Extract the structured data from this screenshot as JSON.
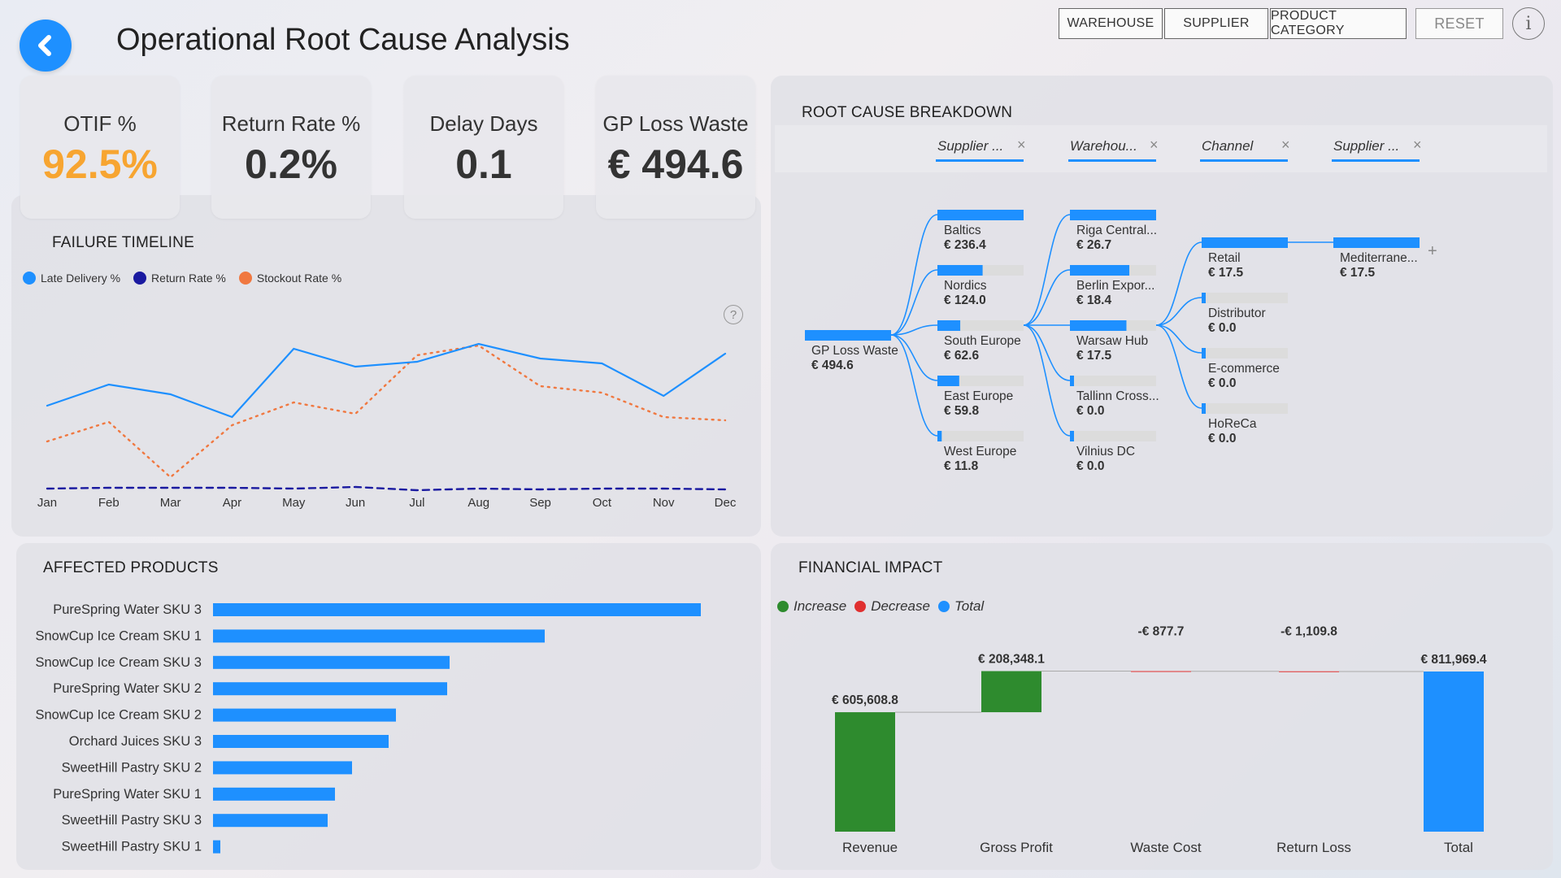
{
  "header": {
    "title": "Operational Root Cause Analysis",
    "filters": [
      "WAREHOUSE",
      "SUPPLIER",
      "PRODUCT CATEGORY"
    ],
    "reset_label": "RESET",
    "info_label": "i"
  },
  "kpis": [
    {
      "label": "OTIF %",
      "value": "92.5%",
      "color": "#f7a531"
    },
    {
      "label": "Return Rate %",
      "value": "0.2%",
      "color": "#333333"
    },
    {
      "label": "Delay Days",
      "value": "0.1",
      "color": "#333333"
    },
    {
      "label": "GP Loss Waste",
      "value": "€ 494.6",
      "color": "#333333"
    }
  ],
  "timeline": {
    "title": "FAILURE TIMELINE",
    "help_label": "?",
    "legend": [
      {
        "name": "Late Delivery %",
        "color": "#1e90ff"
      },
      {
        "name": "Return Rate %",
        "color": "#1a1aa0"
      },
      {
        "name": "Stockout Rate %",
        "color": "#f07840"
      }
    ]
  },
  "root_cause": {
    "title": "ROOT CAUSE BREAKDOWN",
    "headers": [
      "Supplier ...",
      "Warehou...",
      "Channel",
      "Supplier ..."
    ],
    "close_label": "×",
    "expand_label": "+",
    "root": {
      "label": "GP Loss Waste",
      "value": "€ 494.6"
    },
    "levels": [
      [
        {
          "label": "Baltics",
          "value": "€ 236.4",
          "amount": 236.4
        },
        {
          "label": "Nordics",
          "value": "€ 124.0",
          "amount": 124.0
        },
        {
          "label": "South Europe",
          "value": "€ 62.6",
          "amount": 62.6
        },
        {
          "label": "East Europe",
          "value": "€ 59.8",
          "amount": 59.8
        },
        {
          "label": "West Europe",
          "value": "€ 11.8",
          "amount": 11.8
        }
      ],
      [
        {
          "label": "Riga Central...",
          "value": "€ 26.7",
          "amount": 26.7
        },
        {
          "label": "Berlin Expor...",
          "value": "€ 18.4",
          "amount": 18.4
        },
        {
          "label": "Warsaw Hub",
          "value": "€ 17.5",
          "amount": 17.5
        },
        {
          "label": "Tallinn Cross...",
          "value": "€ 0.0",
          "amount": 0
        },
        {
          "label": "Vilnius DC",
          "value": "€ 0.0",
          "amount": 0
        }
      ],
      [
        {
          "label": "Retail",
          "value": "€ 17.5",
          "amount": 17.5
        },
        {
          "label": "Distributor",
          "value": "€ 0.0",
          "amount": 0
        },
        {
          "label": "E-commerce",
          "value": "€ 0.0",
          "amount": 0
        },
        {
          "label": "HoReCa",
          "value": "€ 0.0",
          "amount": 0
        }
      ],
      [
        {
          "label": "Mediterrane...",
          "value": "€ 17.5",
          "amount": 17.5
        }
      ]
    ]
  },
  "products": {
    "title": "AFFECTED PRODUCTS"
  },
  "financial": {
    "title": "FINANCIAL IMPACT",
    "legend": [
      {
        "name": "Increase",
        "color": "#2e8b2e"
      },
      {
        "name": "Decrease",
        "color": "#e03030"
      },
      {
        "name": "Total",
        "color": "#1e90ff"
      }
    ]
  },
  "chart_data": [
    {
      "type": "line",
      "title": "FAILURE TIMELINE",
      "categories": [
        "Jan",
        "Feb",
        "Mar",
        "Apr",
        "May",
        "Jun",
        "Jul",
        "Aug",
        "Sep",
        "Oct",
        "Nov",
        "Dec"
      ],
      "ylim": [
        0,
        10
      ],
      "grid": false,
      "legend": "top-left",
      "series": [
        {
          "name": "Late Delivery %",
          "color": "#1e90ff",
          "style": "solid",
          "values": [
            5.3,
            6.6,
            6.0,
            4.6,
            8.8,
            7.7,
            8.0,
            9.1,
            8.2,
            7.9,
            5.9,
            8.5
          ]
        },
        {
          "name": "Return Rate %",
          "color": "#1a1aa0",
          "style": "dashed",
          "values": [
            0.2,
            0.25,
            0.25,
            0.25,
            0.2,
            0.3,
            0.1,
            0.2,
            0.15,
            0.2,
            0.2,
            0.15
          ]
        },
        {
          "name": "Stockout Rate %",
          "color": "#f07840",
          "style": "dotted",
          "values": [
            3.1,
            4.3,
            0.9,
            4.1,
            5.5,
            4.8,
            8.4,
            9.0,
            6.5,
            6.1,
            4.6,
            4.4
          ]
        }
      ]
    },
    {
      "type": "bar",
      "orientation": "horizontal",
      "title": "AFFECTED PRODUCTS",
      "categories": [
        "PureSpring Water SKU 3",
        "SnowCup Ice Cream SKU 1",
        "SnowCup Ice Cream SKU 3",
        "PureSpring Water SKU 2",
        "SnowCup Ice Cream SKU 2",
        "Orchard Juices SKU 3",
        "SweetHill Pastry SKU 2",
        "PureSpring Water SKU 1",
        "SweetHill Pastry SKU 3",
        "SweetHill Pastry SKU 1"
      ],
      "values": [
        100,
        68,
        48.5,
        48,
        37.5,
        36,
        28.5,
        25,
        23.5,
        1.5
      ],
      "color": "#1e90ff"
    },
    {
      "type": "bar",
      "subtype": "waterfall",
      "title": "FINANCIAL IMPACT",
      "categories": [
        "Revenue",
        "Gross Profit",
        "Waste Cost",
        "Return Loss",
        "Total"
      ],
      "values": [
        605608.8,
        208348.1,
        -877.7,
        -1109.8,
        811969.4
      ],
      "labels": [
        "€ 605,608.8",
        "€ 208,348.1",
        "-€ 877.7",
        "-€ 1,109.8",
        "€ 811,969.4"
      ],
      "kinds": [
        "increase",
        "increase",
        "decrease",
        "decrease",
        "total"
      ],
      "colors": {
        "increase": "#2e8b2e",
        "decrease": "#e03030",
        "total": "#1e90ff"
      },
      "legend": "top-left"
    }
  ]
}
